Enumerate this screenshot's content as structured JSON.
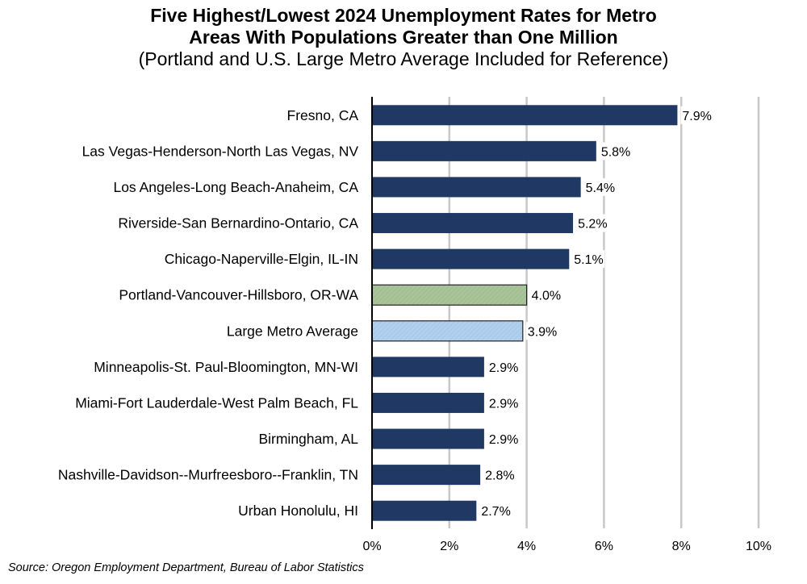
{
  "chart_data": {
    "type": "bar",
    "orientation": "horizontal",
    "title_line1": "Five Highest/Lowest 2024 Unemployment Rates for Metro",
    "title_line2": "Areas With Populations Greater than One Million",
    "subtitle": "(Portland and U.S. Large Metro Average Included for Reference)",
    "categories": [
      "Fresno, CA",
      "Las Vegas-Henderson-North Las Vegas, NV",
      "Los Angeles-Long Beach-Anaheim, CA",
      "Riverside-San Bernardino-Ontario, CA",
      "Chicago-Naperville-Elgin, IL-IN",
      "Portland-Vancouver-Hillsboro, OR-WA",
      "Large Metro Average",
      "Minneapolis-St. Paul-Bloomington, MN-WI",
      "Miami-Fort Lauderdale-West Palm Beach, FL",
      "Birmingham, AL",
      "Nashville-Davidson--Murfreesboro--Franklin, TN",
      "Urban Honolulu, HI"
    ],
    "values": [
      7.9,
      5.8,
      5.4,
      5.2,
      5.1,
      4.0,
      3.9,
      2.9,
      2.9,
      2.9,
      2.8,
      2.7
    ],
    "data_labels": [
      "7.9%",
      "5.8%",
      "5.4%",
      "5.2%",
      "5.1%",
      "4.0%",
      "3.9%",
      "2.9%",
      "2.9%",
      "2.9%",
      "2.8%",
      "2.7%"
    ],
    "bar_colors": [
      "#1f3864",
      "#1f3864",
      "#1f3864",
      "#1f3864",
      "#1f3864",
      "#a9c49a",
      "#a9cbec",
      "#1f3864",
      "#1f3864",
      "#1f3864",
      "#1f3864",
      "#1f3864"
    ],
    "xlim": [
      0,
      10
    ],
    "xticks": [
      0,
      2,
      4,
      6,
      8,
      10
    ],
    "xtick_labels": [
      "0%",
      "2%",
      "4%",
      "6%",
      "8%",
      "10%"
    ],
    "grid": "vertical",
    "xlabel": "",
    "ylabel": "",
    "source": "Source: Oregon Employment Department, Bureau of Labor Statistics"
  }
}
